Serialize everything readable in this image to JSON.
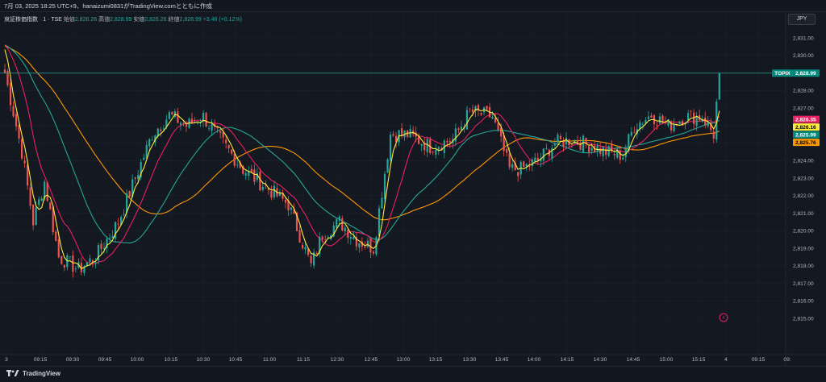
{
  "caption": "7月 03, 2025 18:25 UTC+9、hanaizumi0831がTradingView.comとともに作成",
  "legend": {
    "symbol": "東証株価指数 · 1 · TSE",
    "open_label": "始値",
    "open_value": "2,826.26",
    "high_label": "高値",
    "high_value": "2,828.99",
    "low_label": "安値",
    "low_value": "2,826.26",
    "close_label": "終値",
    "close_value": "2,828.99",
    "change": "+3.46 (+0.12%)"
  },
  "currency": "JPY",
  "brand": "TradingView",
  "colors": {
    "up": "#26a69a",
    "down": "#ef5350",
    "fast_ma": "#ffeb3b",
    "mid_ma": "#e91e63",
    "slow_ma": "#26a69a",
    "slowest_ma": "#ff9800",
    "background": "#141821"
  },
  "price_tags": [
    {
      "text": "TOPIX",
      "value": 2828.99,
      "bg": "#00897b",
      "fg": "#ffffff",
      "tag": "symbol"
    },
    {
      "text": "2,828.99",
      "value": 2828.99,
      "bg": "#00897b",
      "fg": "#ffffff"
    },
    {
      "text": "2,826.35",
      "value": 2826.35,
      "bg": "#e91e63",
      "fg": "#ffffff"
    },
    {
      "text": "2,826.16",
      "value": 2826.16,
      "bg": "#ffeb3b",
      "fg": "#000000"
    },
    {
      "text": "2,825.99",
      "value": 2825.99,
      "bg": "#00897b",
      "fg": "#ffffff"
    },
    {
      "text": "2,825.76",
      "value": 2825.76,
      "bg": "#ff9800",
      "fg": "#000000"
    }
  ],
  "chart_data": {
    "type": "candlestick",
    "y_ticks": [
      "2,831.00",
      "2,830.00",
      "2,829.00",
      "2,828.00",
      "2,827.00",
      "2,826.00",
      "2,825.00",
      "2,824.00",
      "2,823.00",
      "2,822.00",
      "2,821.00",
      "2,820.00",
      "2,819.00",
      "2,818.00",
      "2,817.00",
      "2,816.00",
      "2,815.00"
    ],
    "ylim": [
      2815,
      2831
    ],
    "x_ticks": [
      "3",
      "09:15",
      "09:30",
      "09:45",
      "10:00",
      "10:15",
      "10:30",
      "10:45",
      "11:00",
      "11:15",
      "12:30",
      "12:45",
      "13:00",
      "13:15",
      "13:30",
      "13:45",
      "14:00",
      "14:15",
      "14:30",
      "14:45",
      "15:00",
      "15:15",
      "4",
      "09:15",
      "09:"
    ],
    "last_price": 2828.99,
    "close_keypoints": [
      [
        0,
        2829.0
      ],
      [
        6,
        2824.5
      ],
      [
        10,
        2820.5
      ],
      [
        14,
        2822.8
      ],
      [
        19,
        2818.5
      ],
      [
        26,
        2817.8
      ],
      [
        32,
        2818.5
      ],
      [
        40,
        2820.5
      ],
      [
        46,
        2823.0
      ],
      [
        52,
        2825.5
      ],
      [
        58,
        2826.6
      ],
      [
        64,
        2826.0
      ],
      [
        70,
        2826.5
      ],
      [
        76,
        2825.2
      ],
      [
        84,
        2823.5
      ],
      [
        92,
        2822.5
      ],
      [
        100,
        2821.5
      ],
      [
        108,
        2818.0
      ],
      [
        112,
        2819.8
      ],
      [
        118,
        2820.5
      ],
      [
        124,
        2819.5
      ],
      [
        130,
        2819.0
      ],
      [
        136,
        2825.5
      ],
      [
        142,
        2825.5
      ],
      [
        150,
        2824.8
      ],
      [
        158,
        2825.2
      ],
      [
        164,
        2826.8
      ],
      [
        172,
        2826.5
      ],
      [
        178,
        2823.5
      ],
      [
        182,
        2823.5
      ],
      [
        188,
        2824.0
      ],
      [
        194,
        2825.0
      ],
      [
        200,
        2825.2
      ],
      [
        206,
        2824.9
      ],
      [
        212,
        2824.5
      ],
      [
        218,
        2824.3
      ],
      [
        222,
        2826.0
      ],
      [
        228,
        2826.6
      ],
      [
        234,
        2826.0
      ],
      [
        240,
        2826.5
      ],
      [
        246,
        2826.5
      ],
      [
        250,
        2825.5
      ],
      [
        252,
        2828.99
      ]
    ],
    "moving_averages": [
      {
        "color": "#ffeb3b",
        "last": 2826.16
      },
      {
        "color": "#e91e63",
        "last": 2826.35
      },
      {
        "color": "#26a69a",
        "last": 2825.99
      },
      {
        "color": "#ff9800",
        "last": 2825.76
      }
    ]
  }
}
